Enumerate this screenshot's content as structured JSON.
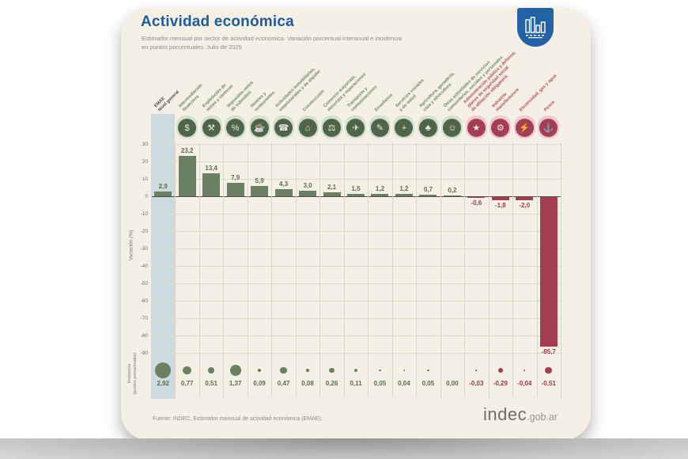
{
  "header": {
    "title": "Actividad económica",
    "subtitle": "Estimador mensual por sector de actividad económica. Variación porcentual interanual e incidencia\nen puntos porcentuales. Julio de 2025"
  },
  "footer": {
    "source": "Fuente: INDEC, Estimador mensual de actividad económica (EMAE)."
  },
  "brand": {
    "name": "indec",
    "suffix": ".gob.ar"
  },
  "colors": {
    "title_blue": "#1d5b99",
    "badge_blue": "#2262a5",
    "card_bg": "#f4f0e5",
    "positive_green": "#6b7f63",
    "negative_red": "#a53c50",
    "highlight_band": "#ccdbde",
    "icon_green_dark": "#4f6449",
    "icon_green_tint": "#d5e0cd",
    "icon_red_dark": "#a43e53",
    "icon_red_tint": "#efc9d0"
  },
  "chart_data": {
    "type": "bar",
    "title": "Actividad económica",
    "subtitle": "Estimador mensual por sector de actividad económica. Variación porcentual interanual e incidencia en puntos porcentuales. Julio de 2025",
    "ylabel": "Variación (%)",
    "incidence_label": "Incidencia\n(puntos porcentuales)",
    "ylim": [
      -90,
      30
    ],
    "ytick_step": 10,
    "grid": true,
    "highlighted_category_index": 0,
    "categories": [
      "EMAE\nNivel general",
      "Intermediación\nfinanciera",
      "Explotación de\nminas y canteras",
      "Impuestos netos\nde subsidios",
      "Hoteles y\nrestaurantes",
      "Actividades inmobiliarias,\nempresariales y de alquiler",
      "Construcción",
      "Comercio mayorista,\nminorista y reparaciones",
      "Transporte y\ncomunicaciones",
      "Enseñanza",
      "Servicios sociales\ny de salud",
      "Agricultura, ganadería,\ncaza y silvicultura",
      "Otras actividades de servicios\ncomunitarios, sociales y personales",
      "Administración pública y defensa;\nplanes de seguridad social\nde afiliación obligatoria",
      "Industria\nmanufacturera",
      "Electricidad, gas y agua",
      "Pesca"
    ],
    "icons": [
      {
        "name": "emae-highlight",
        "glyph": ""
      },
      {
        "name": "bank-icon",
        "glyph": "$"
      },
      {
        "name": "mining-icon",
        "glyph": "⚒"
      },
      {
        "name": "taxes-icon",
        "glyph": "%"
      },
      {
        "name": "hotels-restaurants-icon",
        "glyph": "☕"
      },
      {
        "name": "real-estate-icon",
        "glyph": "☎"
      },
      {
        "name": "construction-icon",
        "glyph": "⌂"
      },
      {
        "name": "commerce-icon",
        "glyph": "⚖"
      },
      {
        "name": "transport-icon",
        "glyph": "✈"
      },
      {
        "name": "education-icon",
        "glyph": "✎"
      },
      {
        "name": "health-icon",
        "glyph": "+"
      },
      {
        "name": "agriculture-icon",
        "glyph": "♣"
      },
      {
        "name": "community-services-icon",
        "glyph": "☺"
      },
      {
        "name": "public-administration-icon",
        "glyph": "★"
      },
      {
        "name": "industry-icon",
        "glyph": "⚙"
      },
      {
        "name": "electricity-gas-water-icon",
        "glyph": "⚡"
      },
      {
        "name": "fishing-icon",
        "glyph": "⚓"
      }
    ],
    "series": [
      {
        "name": "Variación porcentual interanual (%)",
        "values": [
          2.9,
          23.2,
          13.4,
          7.9,
          5.9,
          4.3,
          3.0,
          2.1,
          1.5,
          1.2,
          1.2,
          0.7,
          0.2,
          -0.6,
          -1.8,
          -2.0,
          -85.7
        ]
      },
      {
        "name": "Incidencia (puntos porcentuales)",
        "values": [
          2.92,
          0.77,
          0.51,
          1.37,
          0.09,
          0.47,
          0.08,
          0.26,
          0.11,
          0.05,
          0.04,
          0.05,
          0.0,
          -0.03,
          -0.29,
          -0.04,
          -0.51
        ]
      }
    ]
  }
}
